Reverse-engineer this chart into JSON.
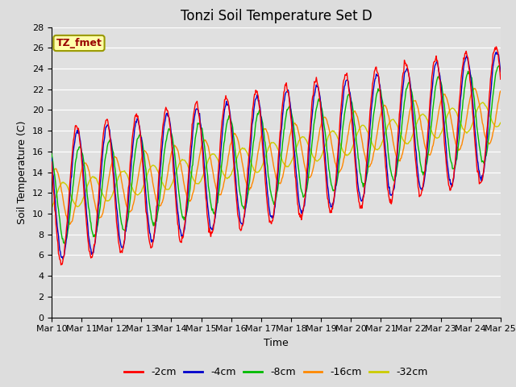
{
  "title": "Tonzi Soil Temperature Set D",
  "xlabel": "Time",
  "ylabel": "Soil Temperature (C)",
  "annotation": "TZ_fmet",
  "ylim": [
    0,
    28
  ],
  "yticks": [
    0,
    2,
    4,
    6,
    8,
    10,
    12,
    14,
    16,
    18,
    20,
    22,
    24,
    26,
    28
  ],
  "x_tick_labels": [
    "Mar 10",
    "Mar 11",
    "Mar 12",
    "Mar 13",
    "Mar 14",
    "Mar 15",
    "Mar 16",
    "Mar 17",
    "Mar 18",
    "Mar 19",
    "Mar 20",
    "Mar 21",
    "Mar 22",
    "Mar 23",
    "Mar 24",
    "Mar 25"
  ],
  "colors": {
    "-2cm": "#ff0000",
    "-4cm": "#0000cc",
    "-8cm": "#00bb00",
    "-16cm": "#ff8800",
    "-32cm": "#cccc00"
  },
  "fig_bg": "#dddddd",
  "plot_bg": "#e0e0e0",
  "annotation_bg": "#ffffaa",
  "annotation_border": "#999900",
  "title_fontsize": 12,
  "label_fontsize": 9,
  "tick_fontsize": 8
}
